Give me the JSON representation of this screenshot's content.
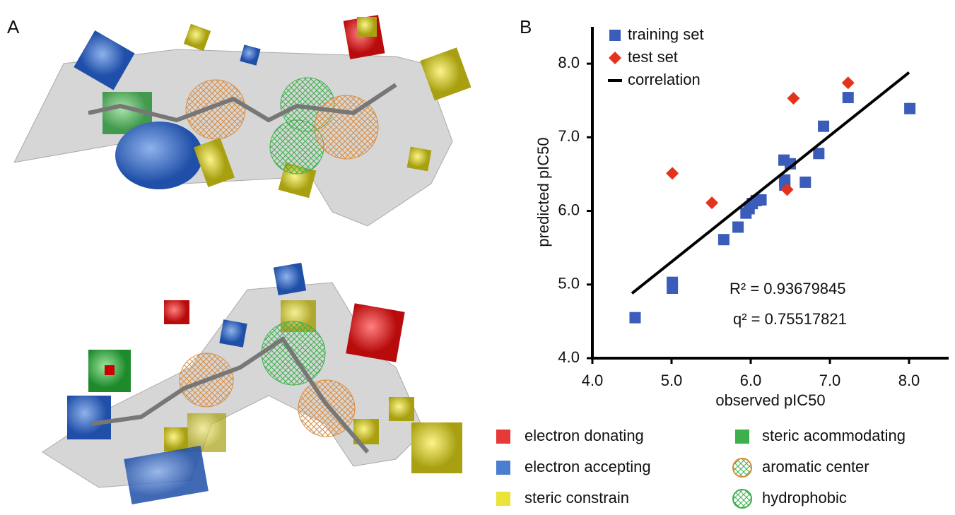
{
  "panel_labels": [
    "A",
    "B"
  ],
  "chart_data": {
    "type": "scatter",
    "xlabel": "observed pIC50",
    "ylabel": "predicted pIC50",
    "xlim": [
      4.0,
      8.5
    ],
    "ylim": [
      4.0,
      8.5
    ],
    "xticks": [
      {
        "value": 4,
        "label": "4.0"
      },
      {
        "value": 5,
        "label": "5.0"
      },
      {
        "value": 6,
        "label": "6.0"
      },
      {
        "value": 7,
        "label": "7.0"
      },
      {
        "value": 8,
        "label": "8.0"
      }
    ],
    "yticks": [
      {
        "value": 4,
        "label": "4.0"
      },
      {
        "value": 5,
        "label": "5.0"
      },
      {
        "value": 6,
        "label": "6.0"
      },
      {
        "value": 7,
        "label": "7.0"
      },
      {
        "value": 8,
        "label": "8.0"
      }
    ],
    "legend": "upper left",
    "series": [
      {
        "name": "training set",
        "color": "#3b5cb8",
        "marker": "square",
        "x": [
          4.54,
          5.01,
          5.01,
          5.66,
          5.84,
          5.94,
          5.98,
          6.02,
          6.07,
          6.13,
          6.42,
          6.5,
          6.43,
          6.43,
          6.69,
          6.86,
          6.92,
          7.23,
          8.01
        ],
        "values": [
          4.55,
          5.03,
          4.95,
          5.61,
          5.78,
          5.97,
          6.03,
          6.1,
          6.14,
          6.15,
          6.69,
          6.64,
          6.42,
          6.35,
          6.39,
          6.78,
          7.15,
          7.54,
          7.39
        ]
      },
      {
        "name": "test set",
        "color": "#e5321c",
        "marker": "diamond",
        "x": [
          5.01,
          5.51,
          6.46,
          6.54,
          7.23
        ],
        "values": [
          6.51,
          6.11,
          6.29,
          7.53,
          7.74
        ]
      },
      {
        "name": "correlation",
        "color": "#000000",
        "marker": "line",
        "x": [
          4.5,
          8.0
        ],
        "values": [
          4.88,
          7.88
        ]
      }
    ],
    "annotations": [
      "R² = 0.93679845",
      "q² = 0.75517821"
    ]
  },
  "feature_legend": [
    {
      "label": "electron donating",
      "color": "#e8393a",
      "icon": "square"
    },
    {
      "label": "electron accepting",
      "color": "#4a7ed0",
      "icon": "square"
    },
    {
      "label": "steric constrain",
      "color": "#ece33a",
      "icon": "square"
    },
    {
      "label": "steric acommodating",
      "color": "#3cb04a",
      "icon": "square"
    },
    {
      "label": "aromatic center",
      "color": "#d98a3c",
      "icon": "sphere"
    },
    {
      "label": "hydrophobic",
      "color": "#39b04a",
      "icon": "sphere"
    }
  ]
}
